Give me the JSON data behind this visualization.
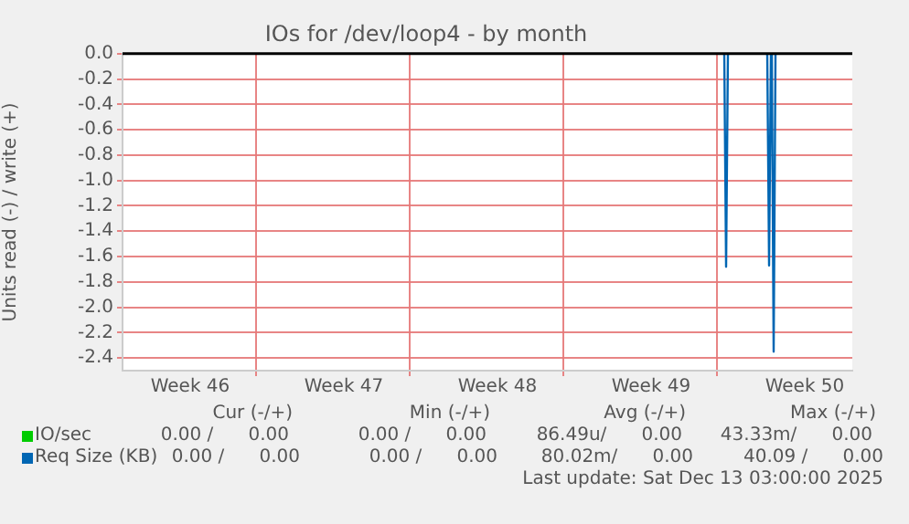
{
  "chart_data": {
    "type": "line",
    "title": "IOs for /dev/loop4 - by month",
    "ylabel": "Units read (-) / write (+)",
    "series": [
      {
        "name": "IO/sec",
        "color": "#00cc00"
      },
      {
        "name": "Req Size (KB)",
        "color": "#0066b3",
        "x": [
          "2025-12-08T08:00",
          "2025-12-08T10:00",
          "2025-12-08T12:00",
          "2025-12-09T12:00",
          "2025-12-10T07:00",
          "2025-12-10T09:00",
          "2025-12-10T11:00",
          "2025-12-10T12:00",
          "2025-12-10T14:00",
          "2025-12-10T16:00"
        ],
        "values": [
          0,
          -1.68,
          0,
          null,
          0,
          -1.67,
          0,
          0,
          -2.35,
          0
        ]
      }
    ],
    "xlim": [
      "2025-11-10T22:00",
      "2025-12-14T04:00"
    ],
    "xticks": [
      {
        "value": "2025-11-14T00:00",
        "label": "Week 46"
      },
      {
        "value": "2025-11-17",
        "label": null
      },
      {
        "value": "2025-11-21T00:00",
        "label": "Week 47"
      },
      {
        "value": "2025-11-24",
        "label": null
      },
      {
        "value": "2025-11-28T00:00",
        "label": "Week 48"
      },
      {
        "value": "2025-12-01",
        "label": null
      },
      {
        "value": "2025-12-05T00:00",
        "label": "Week 49"
      },
      {
        "value": "2025-12-08",
        "label": null
      },
      {
        "value": "2025-12-12T00:00",
        "label": "Week 50"
      }
    ],
    "ylim": [
      -2.5,
      0.0
    ],
    "yticks": [
      {
        "value": 0,
        "label": "0.0"
      },
      {
        "value": -0.2,
        "label": "-0.2"
      },
      {
        "value": -0.4,
        "label": "-0.4"
      },
      {
        "value": -0.6,
        "label": "-0.6"
      },
      {
        "value": -0.8,
        "label": "-0.8"
      },
      {
        "value": -1.0,
        "label": "-1.0"
      },
      {
        "value": -1.2,
        "label": "-1.2"
      },
      {
        "value": -1.4,
        "label": "-1.4"
      },
      {
        "value": -1.6,
        "label": "-1.6"
      },
      {
        "value": -1.8,
        "label": "-1.8"
      },
      {
        "value": -2.0,
        "label": "-2.0"
      },
      {
        "value": -2.2,
        "label": "-2.2"
      },
      {
        "value": -2.4,
        "label": "-2.4"
      }
    ],
    "ref_lines": [
      {
        "axis": "y",
        "value": 0,
        "color": "#000000"
      }
    ],
    "grid": true,
    "legend": "bottom left",
    "marker": "none",
    "line_style": "solid",
    "annotations": [
      "Cur (-/+)",
      "Min (-/+)",
      "Avg (-/+)",
      "Max (-/+)",
      "0.00 /      0.00",
      "0.00 /      0.00",
      "86.49u/      0.00",
      "43.33m/      0.00",
      "0.00 /      0.00",
      "0.00 /      0.00",
      "80.02m/      0.00",
      "40.09 /      0.00",
      "Last update: Sat Dec 13 03:00:00 2025"
    ]
  }
}
